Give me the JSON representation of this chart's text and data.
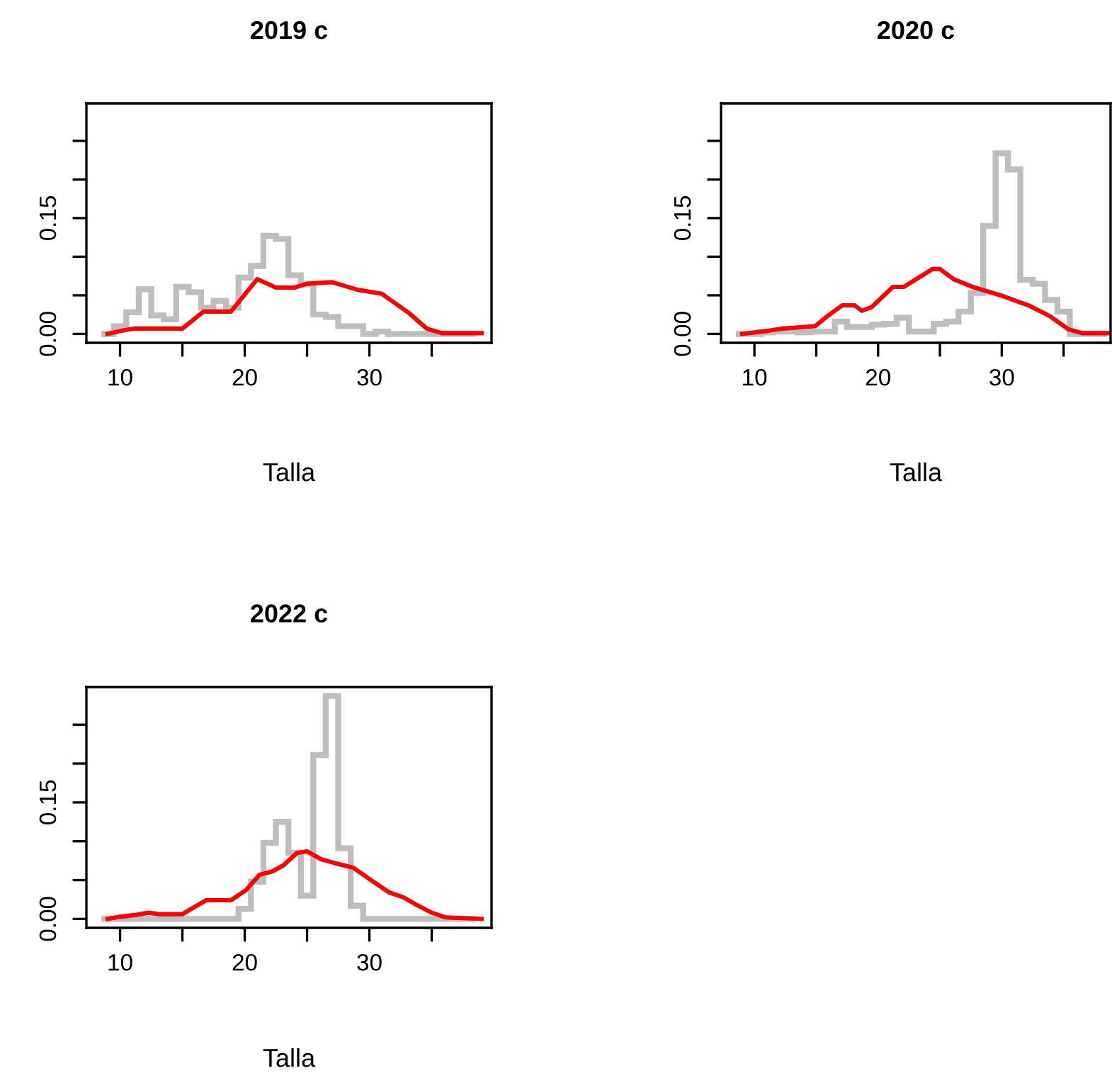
{
  "chart_data": [
    {
      "type": "histogram",
      "title": "2019 c",
      "xlabel": "Talla",
      "xlim": [
        7.3,
        39.8
      ],
      "ylim": [
        -0.0115,
        0.2985
      ],
      "xticks": [
        10,
        {
          "value": 15,
          "label": null
        },
        20,
        {
          "value": 25,
          "label": null
        },
        30,
        {
          "value": 35,
          "label": null
        }
      ],
      "yticks": [
        {
          "value": 0,
          "label": "0.00"
        },
        {
          "value": 0.05,
          "label": null
        },
        {
          "value": 0.1,
          "label": null
        },
        {
          "value": 0.15,
          "label": "0.15"
        },
        {
          "value": 0.2,
          "label": null
        },
        {
          "value": 0.25,
          "label": null
        }
      ],
      "grid": false,
      "series": [
        {
          "type": "histogram",
          "color": "#bebebe",
          "bins": [
            8.5,
            9.5,
            10.5,
            11.5,
            12.5,
            13.5,
            14.5,
            15.5,
            16.5,
            17.5,
            18.5,
            19.5,
            20.5,
            21.5,
            22.5,
            23.5,
            24.5,
            25.5,
            26.5,
            27.5,
            28.5,
            29.5,
            30.5,
            31.5,
            32.5,
            33.5,
            34.5,
            35.5,
            36.5,
            37.5,
            38.5
          ],
          "values": [
            0,
            0.01,
            0.028,
            0.058,
            0.024,
            0.019,
            0.061,
            0.054,
            0.034,
            0.043,
            0.034,
            0.073,
            0.088,
            0.127,
            0.123,
            0.076,
            0.064,
            0.025,
            0.022,
            0.01,
            0.01,
            0,
            0.003,
            0,
            0,
            0,
            0,
            0,
            0,
            0
          ]
        },
        {
          "type": "line",
          "color": "#ff0000",
          "x": [
            9,
            10.1,
            11.2,
            15,
            16.7,
            18.9,
            21,
            22.5,
            24,
            25,
            27,
            29.1,
            31,
            31.6,
            33.1,
            34.6,
            35.8,
            39
          ],
          "values": [
            0,
            0.004,
            0.007,
            0.007,
            0.029,
            0.029,
            0.071,
            0.06,
            0.06,
            0.065,
            0.067,
            0.057,
            0.052,
            0.045,
            0.028,
            0.007,
            0.001,
            0.001
          ]
        }
      ]
    },
    {
      "type": "histogram",
      "title": "2020 c",
      "xlabel": "Talla",
      "xlim": [
        7.3,
        38.8
      ],
      "ylim": [
        -0.0115,
        0.2985
      ],
      "xticks": [
        10,
        {
          "value": 15,
          "label": null
        },
        20,
        {
          "value": 25,
          "label": null
        },
        30,
        {
          "value": 35,
          "label": null
        }
      ],
      "yticks": [
        {
          "value": 0,
          "label": "0.00"
        },
        {
          "value": 0.05,
          "label": null
        },
        {
          "value": 0.1,
          "label": null
        },
        {
          "value": 0.15,
          "label": "0.15"
        },
        {
          "value": 0.2,
          "label": null
        },
        {
          "value": 0.25,
          "label": null
        }
      ],
      "grid": false,
      "series": [
        {
          "type": "histogram",
          "color": "#bebebe",
          "bins": [
            8.5,
            9.5,
            10.5,
            11.5,
            12.5,
            13.5,
            14.5,
            15.5,
            16.5,
            17.5,
            18.5,
            19.5,
            20.5,
            21.5,
            22.5,
            23.5,
            24.5,
            25.5,
            26.5,
            27.5,
            28.5,
            29.5,
            30.5,
            31.5,
            32.5,
            33.5,
            34.5,
            35.5,
            36.5,
            37.5,
            38.5
          ],
          "values": [
            0,
            0,
            0.002,
            0.003,
            0.003,
            0.002,
            0.003,
            0.003,
            0.016,
            0.009,
            0.009,
            0.012,
            0.013,
            0.021,
            0.003,
            0.003,
            0.013,
            0.016,
            0.029,
            0.053,
            0.14,
            0.234,
            0.213,
            0.07,
            0.065,
            0.044,
            0.029,
            0,
            0,
            0
          ]
        },
        {
          "type": "line",
          "color": "#ff0000",
          "x": [
            9,
            11.1,
            12.3,
            14.9,
            15.9,
            17.1,
            18.1,
            18.7,
            19.5,
            21.2,
            22.1,
            24.4,
            25,
            26.1,
            27.8,
            30.1,
            32.3,
            33.9,
            35.4,
            36.5,
            38.6
          ],
          "values": [
            0,
            0.004,
            0.007,
            0.01,
            0.023,
            0.037,
            0.037,
            0.03,
            0.035,
            0.061,
            0.061,
            0.084,
            0.084,
            0.071,
            0.06,
            0.049,
            0.036,
            0.023,
            0.006,
            0.001,
            0.001
          ]
        }
      ]
    },
    {
      "type": "histogram",
      "title": "2022 c",
      "xlabel": "Talla",
      "xlim": [
        7.3,
        39.8
      ],
      "ylim": [
        -0.0115,
        0.2985
      ],
      "xticks": [
        10,
        {
          "value": 15,
          "label": null
        },
        20,
        {
          "value": 25,
          "label": null
        },
        30,
        {
          "value": 35,
          "label": null
        }
      ],
      "yticks": [
        {
          "value": 0,
          "label": "0.00"
        },
        {
          "value": 0.05,
          "label": null
        },
        {
          "value": 0.1,
          "label": null
        },
        {
          "value": 0.15,
          "label": "0.15"
        },
        {
          "value": 0.2,
          "label": null
        },
        {
          "value": 0.25,
          "label": null
        }
      ],
      "grid": false,
      "series": [
        {
          "type": "histogram",
          "color": "#bebebe",
          "bins": [
            8.5,
            9.5,
            10.5,
            11.5,
            12.5,
            13.5,
            14.5,
            15.5,
            16.5,
            17.5,
            18.5,
            19.5,
            20.5,
            21.5,
            22.5,
            23.5,
            24.5,
            25.5,
            26.5,
            27.5,
            28.5,
            29.5,
            30.5,
            31.5,
            32.5,
            33.5,
            34.5,
            35.5,
            36.5,
            37.5,
            38.5
          ],
          "values": [
            0,
            0,
            0,
            0,
            0,
            0,
            0,
            0,
            0,
            0,
            0,
            0.013,
            0.048,
            0.098,
            0.125,
            0.085,
            0.03,
            0.211,
            0.287,
            0.091,
            0.017,
            0,
            0,
            0,
            0,
            0,
            0,
            0,
            0,
            0
          ]
        },
        {
          "type": "line",
          "color": "#ff0000",
          "x": [
            9,
            10.1,
            11.2,
            12.3,
            13.1,
            15,
            15.5,
            16.9,
            18.9,
            20.1,
            21.2,
            22.2,
            23.1,
            24.2,
            25,
            26.1,
            27.2,
            28.7,
            30.3,
            31.6,
            32.7,
            33.8,
            35,
            36.1,
            39
          ],
          "values": [
            0,
            0.003,
            0.005,
            0.008,
            0.006,
            0.006,
            0.011,
            0.024,
            0.024,
            0.037,
            0.057,
            0.061,
            0.069,
            0.085,
            0.087,
            0.077,
            0.072,
            0.066,
            0.048,
            0.034,
            0.028,
            0.018,
            0.008,
            0.002,
            0
          ]
        }
      ]
    }
  ]
}
